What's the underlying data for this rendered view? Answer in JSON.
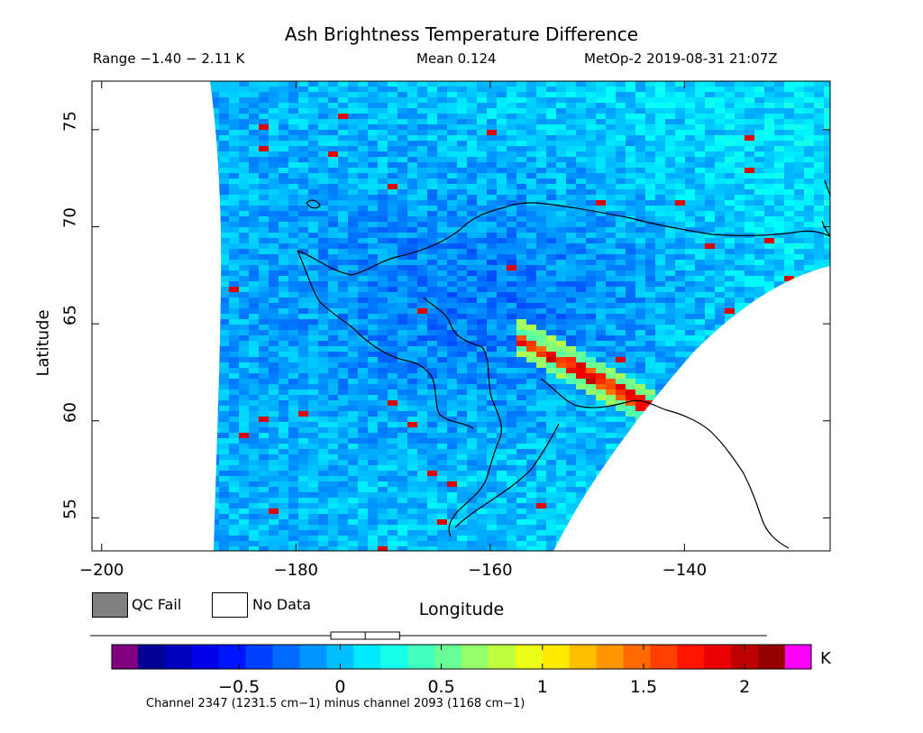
{
  "header": {
    "title": "Ash Brightness Temperature Difference",
    "range": "Range −1.40 − 2.11 K",
    "mean": "Mean 0.124",
    "satellite_time": "MetOp-2 2019-08-31 21:07Z"
  },
  "chart_data": {
    "type": "heatmap",
    "title": "Ash Brightness Temperature Difference",
    "xlabel": "Longitude",
    "ylabel": "Latitude",
    "xlim": [
      -201,
      -125
    ],
    "ylim": [
      53.3,
      77.5
    ],
    "x_ticks": [
      "−200",
      "−180",
      "−160",
      "−140"
    ],
    "x_tick_values": [
      -200,
      -180,
      -160,
      -140
    ],
    "y_ticks": [
      "55",
      "60",
      "65",
      "70",
      "75"
    ],
    "y_tick_values": [
      55,
      60,
      65,
      70,
      75
    ],
    "value_range_K": [
      -1.4,
      2.11
    ],
    "mean_K": 0.124,
    "colorbar": {
      "ticks": [
        "−0.5",
        "0",
        "0.5",
        "1",
        "1.5",
        "2"
      ],
      "tick_values": [
        -0.5,
        0,
        0.5,
        1,
        1.5,
        2
      ],
      "min": -1.0,
      "max": 2.2,
      "unit": "K",
      "caption": "Channel 2347 (1231.5 cm−1) minus channel 2093 (1168 cm−1)"
    },
    "legend": [
      {
        "label": "QC Fail",
        "color": "#808080"
      },
      {
        "label": "No Data",
        "color": "#ffffff"
      }
    ],
    "annotations": [
      "Elevated difference (~1.5–2 K) band along approx. 63–61°N, −153° to −144° longitude"
    ]
  },
  "colors": {
    "low": "#0000c8",
    "mid": "#00c8ff",
    "high": "#ff0000",
    "under": "#800080",
    "over": "#ff00ff",
    "qc_fail": "#808080"
  }
}
